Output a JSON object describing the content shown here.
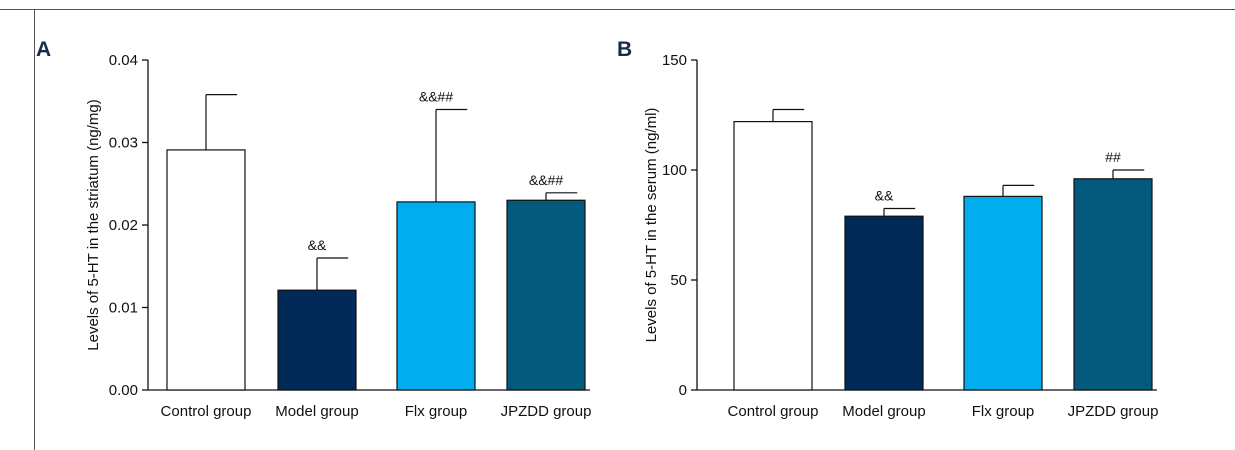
{
  "chart_data": [
    {
      "panel_label": "A",
      "type": "bar",
      "categories": [
        "Control group",
        "Model group",
        "Flx group",
        "JPZDD group"
      ],
      "values": [
        0.0291,
        0.0121,
        0.0228,
        0.023
      ],
      "errors": [
        0.0067,
        0.0039,
        0.0112,
        0.0009
      ],
      "annotations": [
        "",
        "&&",
        "&&##",
        "&&##"
      ],
      "colors": [
        "#ffffff",
        "#012a58",
        "#00adee",
        "#035a7c"
      ],
      "ylabel": "Levels of 5-HT in the striatum (ng/mg)",
      "ylim": [
        0,
        0.04
      ],
      "yticks": [
        "0.00",
        "0.01",
        "0.02",
        "0.03",
        "0.04"
      ]
    },
    {
      "panel_label": "B",
      "type": "bar",
      "categories": [
        "Control group",
        "Model group",
        "Flx group",
        "JPZDD group"
      ],
      "values": [
        122,
        79,
        88,
        96
      ],
      "errors": [
        5.5,
        3.5,
        5,
        4
      ],
      "annotations": [
        "",
        "&&",
        "",
        "##"
      ],
      "colors": [
        "#ffffff",
        "#012a58",
        "#00adee",
        "#035a7c"
      ],
      "ylabel": "Levels of 5-HT in the serum (ng/ml)",
      "ylim": [
        0,
        150
      ],
      "yticks": [
        "0",
        "50",
        "100",
        "150"
      ]
    }
  ]
}
